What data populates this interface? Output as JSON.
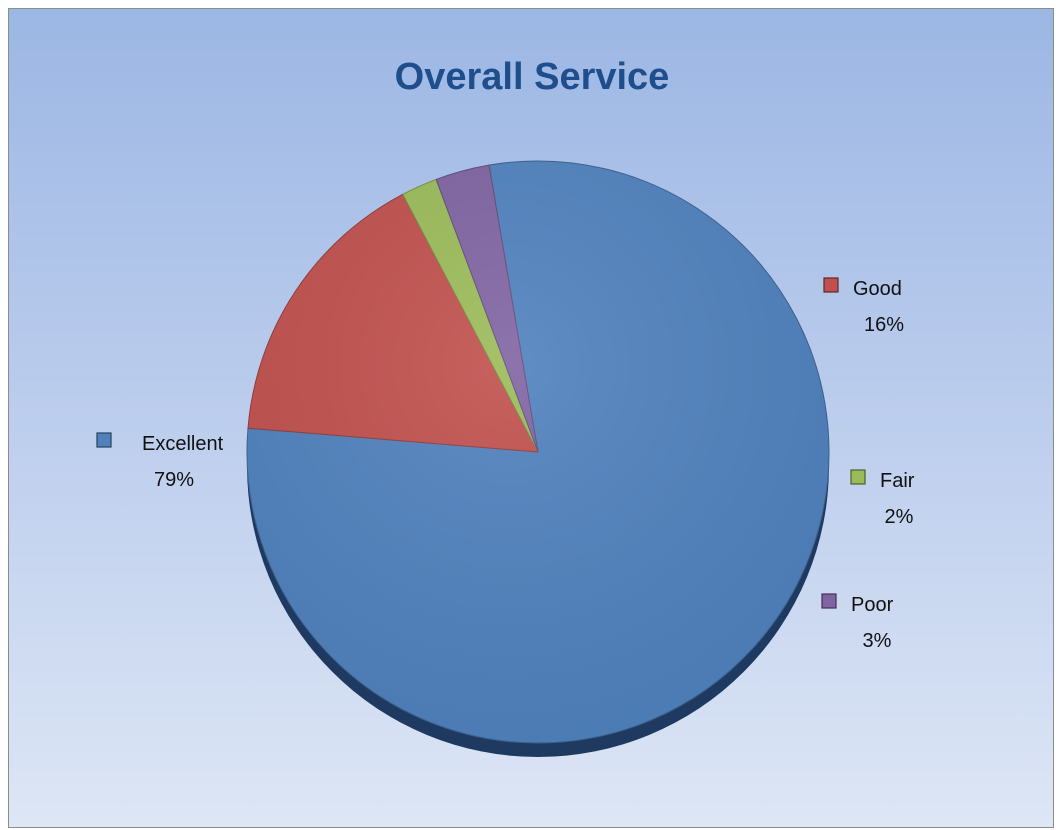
{
  "chart_data": {
    "type": "pie",
    "title": "Overall Service",
    "slices": [
      {
        "name": "Excellent",
        "value": 79,
        "label": "79%",
        "color": "#4f81bd"
      },
      {
        "name": "Good",
        "value": 16,
        "label": "16%",
        "color": "#c0504d"
      },
      {
        "name": "Fair",
        "value": 2,
        "label": "2%",
        "color": "#9bbb59"
      },
      {
        "name": "Poor",
        "value": 3,
        "label": "3%",
        "color": "#8064a2"
      }
    ],
    "legend": "labels beside slices"
  }
}
